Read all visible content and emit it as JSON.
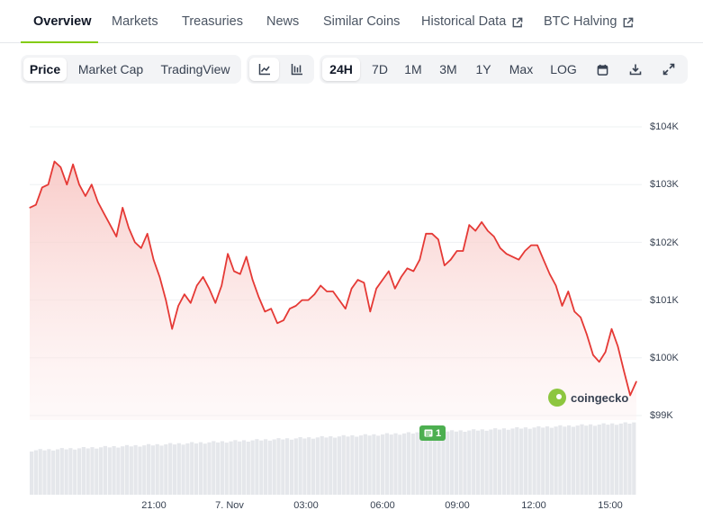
{
  "nav": {
    "tabs": [
      {
        "label": "Overview",
        "active": true
      },
      {
        "label": "Markets"
      },
      {
        "label": "Treasuries"
      },
      {
        "label": "News"
      },
      {
        "label": "Similar Coins"
      },
      {
        "label": "Historical Data",
        "external": true
      },
      {
        "label": "BTC Halving",
        "external": true
      }
    ]
  },
  "toolbar": {
    "view_tabs": [
      "Price",
      "Market Cap",
      "TradingView"
    ],
    "chart_types": [
      "line-chart-icon",
      "candlestick-chart-icon"
    ],
    "ranges": [
      "24H",
      "7D",
      "1M",
      "3M",
      "1Y",
      "Max",
      "LOG"
    ],
    "active_range": "24H",
    "active_view": "Price",
    "action_icons": [
      "calendar-icon",
      "download-icon",
      "expand-icon"
    ]
  },
  "colors": {
    "line": "#e53935",
    "fill_top": "#f8c9c6",
    "accent": "#84cc16",
    "volume": "#e5e7eb",
    "event_badge": "#4caf50"
  },
  "chart_data": {
    "type": "area",
    "y_ticks": [
      "$104K",
      "$103K",
      "$102K",
      "$101K",
      "$100K",
      "$99K"
    ],
    "y_range": [
      99000,
      104000
    ],
    "x_ticks": [
      "21:00",
      "7. Nov",
      "03:00",
      "06:00",
      "09:00",
      "12:00",
      "15:00"
    ],
    "series": [
      {
        "values": [
          102600,
          102650,
          102950,
          103000,
          103400,
          103300,
          103000,
          103350,
          103000,
          102800,
          103000,
          102700,
          102500,
          102300,
          102100,
          102600,
          102250,
          102000,
          101900,
          102150,
          101700,
          101400,
          101000,
          100500,
          100900,
          101100,
          100950,
          101250,
          101400,
          101200,
          100950,
          101250,
          101800,
          101500,
          101450,
          101750,
          101350,
          101050,
          100800,
          100850,
          100600,
          100650,
          100850,
          100900,
          101000,
          101000,
          101100,
          101250,
          101150,
          101150,
          101000,
          100850,
          101200,
          101350,
          101300,
          100800,
          101200,
          101350,
          101500,
          101200,
          101400,
          101550,
          101500,
          101700,
          102150,
          102150,
          102050,
          101600,
          101700,
          101850,
          101850,
          102300,
          102200,
          102350,
          102200,
          102100,
          101900,
          101800,
          101750,
          101700,
          101850,
          101950,
          101950,
          101700,
          101450,
          101250,
          100900,
          101150,
          100800,
          100700,
          100400,
          100050,
          99930,
          100100,
          100500,
          100200,
          99770,
          99350,
          99590
        ],
        "color": "#e53935"
      }
    ],
    "grid": true,
    "event_marker": {
      "label": "1",
      "at": "07:45"
    },
    "watermark": "coingecko"
  }
}
